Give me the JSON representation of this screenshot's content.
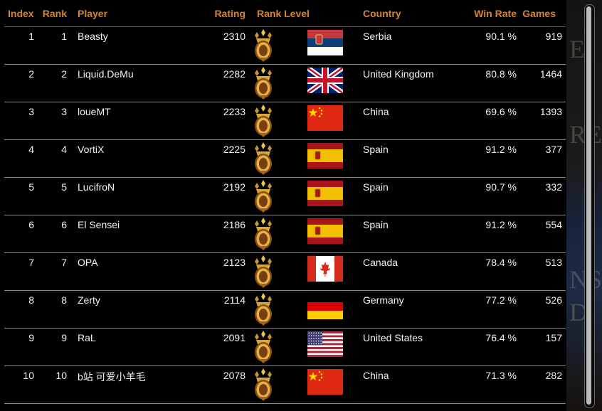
{
  "columns": {
    "index": "Index",
    "rank": "Rank",
    "player": "Player",
    "rating": "Rating",
    "rank_level": "Rank Level",
    "country": "Country",
    "win_rate": "Win Rate",
    "games": "Games"
  },
  "rank_level_icon": "crowned-shield-icon",
  "colors": {
    "header_text": "#d8842a",
    "row_text": "#f2f2f2",
    "header_rule": "#2f66b3",
    "row_rule": "#8a8a8a",
    "background": "#000000"
  },
  "backdrop_letters": [
    "E",
    "RE",
    "NS",
    "D"
  ],
  "rows": [
    {
      "index": "1",
      "rank": "1",
      "player": "Beasty",
      "rating": "2310",
      "flag": "serbia",
      "country": "Serbia",
      "win_rate": "90.1 %",
      "games": "919"
    },
    {
      "index": "2",
      "rank": "2",
      "player": "Liquid.DeMu",
      "rating": "2282",
      "flag": "united-kingdom",
      "country": "United Kingdom",
      "win_rate": "80.8 %",
      "games": "1464"
    },
    {
      "index": "3",
      "rank": "3",
      "player": "loueMT",
      "rating": "2233",
      "flag": "china",
      "country": "China",
      "win_rate": "69.6 %",
      "games": "1393"
    },
    {
      "index": "4",
      "rank": "4",
      "player": "VortiX",
      "rating": "2225",
      "flag": "spain",
      "country": "Spain",
      "win_rate": "91.2 %",
      "games": "377"
    },
    {
      "index": "5",
      "rank": "5",
      "player": "LucifroN",
      "rating": "2192",
      "flag": "spain",
      "country": "Spain",
      "win_rate": "90.7 %",
      "games": "332"
    },
    {
      "index": "6",
      "rank": "6",
      "player": "El Sensei",
      "rating": "2186",
      "flag": "spain",
      "country": "Spain",
      "win_rate": "91.2 %",
      "games": "554"
    },
    {
      "index": "7",
      "rank": "7",
      "player": "OPA",
      "rating": "2123",
      "flag": "canada",
      "country": "Canada",
      "win_rate": "78.4 %",
      "games": "513"
    },
    {
      "index": "8",
      "rank": "8",
      "player": "Zerty",
      "rating": "2114",
      "flag": "germany",
      "country": "Germany",
      "win_rate": "77.2 %",
      "games": "526"
    },
    {
      "index": "9",
      "rank": "9",
      "player": "RaL",
      "rating": "2091",
      "flag": "united-states",
      "country": "United States",
      "win_rate": "76.4 %",
      "games": "157"
    },
    {
      "index": "10",
      "rank": "10",
      "player": "b站 可爱小羊毛",
      "rating": "2078",
      "flag": "china",
      "country": "China",
      "win_rate": "71.3 %",
      "games": "282"
    }
  ]
}
